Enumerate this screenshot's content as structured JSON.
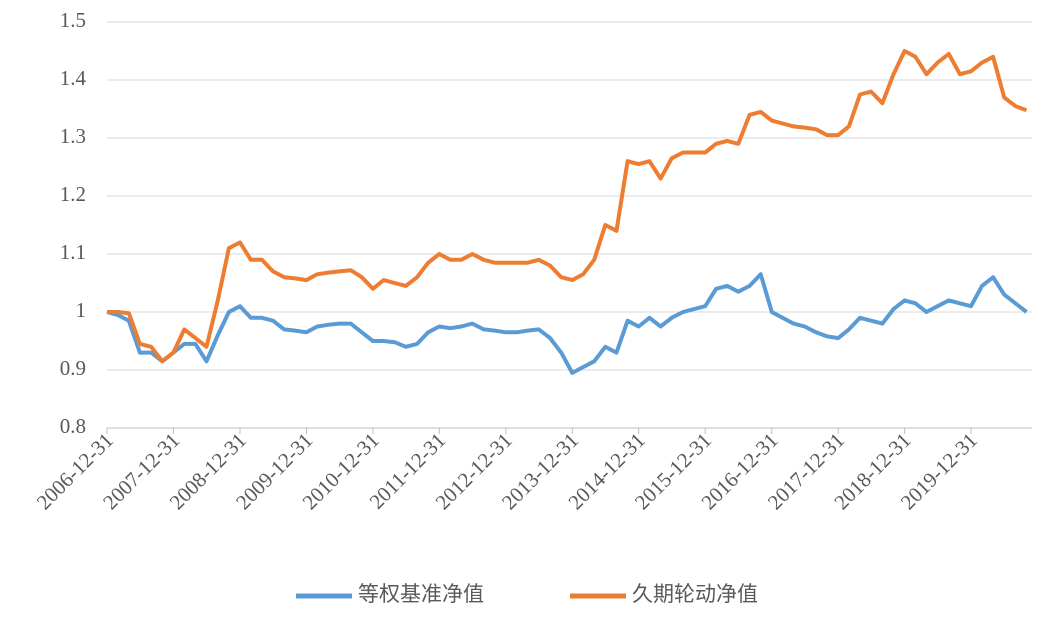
{
  "chart_data": {
    "type": "line",
    "x": [
      "2006-12-31",
      "2007-02-28",
      "2007-04-30",
      "2007-06-30",
      "2007-08-31",
      "2007-10-31",
      "2007-12-31",
      "2008-02-29",
      "2008-04-30",
      "2008-06-30",
      "2008-08-31",
      "2008-10-31",
      "2008-12-31",
      "2009-02-28",
      "2009-04-30",
      "2009-06-30",
      "2009-08-31",
      "2009-10-31",
      "2009-12-31",
      "2010-02-28",
      "2010-04-30",
      "2010-06-30",
      "2010-08-31",
      "2010-10-31",
      "2010-12-31",
      "2011-02-28",
      "2011-04-30",
      "2011-06-30",
      "2011-08-31",
      "2011-10-31",
      "2011-12-31",
      "2012-02-29",
      "2012-04-30",
      "2012-06-30",
      "2012-08-31",
      "2012-10-31",
      "2012-12-31",
      "2013-02-28",
      "2013-04-30",
      "2013-06-30",
      "2013-08-31",
      "2013-10-31",
      "2013-12-31",
      "2014-02-28",
      "2014-04-30",
      "2014-06-30",
      "2014-08-31",
      "2014-10-31",
      "2014-12-31",
      "2015-02-28",
      "2015-04-30",
      "2015-06-30",
      "2015-08-31",
      "2015-10-31",
      "2015-12-31",
      "2016-02-29",
      "2016-04-30",
      "2016-06-30",
      "2016-08-31",
      "2016-10-31",
      "2016-12-31",
      "2017-02-28",
      "2017-04-30",
      "2017-06-30",
      "2017-08-31",
      "2017-10-31",
      "2017-12-31",
      "2018-02-28",
      "2018-04-30",
      "2018-06-30",
      "2018-08-31",
      "2018-10-31",
      "2018-12-31",
      "2019-02-28",
      "2019-04-30",
      "2019-06-30",
      "2019-08-31",
      "2019-10-31",
      "2019-12-31",
      "2020-02-29",
      "2020-04-30",
      "2020-06-30",
      "2020-08-31",
      "2020-10-31"
    ],
    "series": [
      {
        "name": "等权基准净值",
        "color": "#5b9bd5",
        "values": [
          1.0,
          0.995,
          0.985,
          0.93,
          0.93,
          0.915,
          0.93,
          0.945,
          0.945,
          0.915,
          0.96,
          1.0,
          1.01,
          0.99,
          0.99,
          0.985,
          0.97,
          0.968,
          0.965,
          0.975,
          0.978,
          0.98,
          0.98,
          0.965,
          0.95,
          0.95,
          0.948,
          0.94,
          0.945,
          0.965,
          0.975,
          0.972,
          0.975,
          0.98,
          0.97,
          0.968,
          0.965,
          0.965,
          0.968,
          0.97,
          0.955,
          0.93,
          0.895,
          0.905,
          0.915,
          0.94,
          0.93,
          0.985,
          0.975,
          0.99,
          0.975,
          0.99,
          1.0,
          1.005,
          1.01,
          1.04,
          1.045,
          1.035,
          1.045,
          1.065,
          1.0,
          0.99,
          0.98,
          0.975,
          0.965,
          0.958,
          0.955,
          0.97,
          0.99,
          0.985,
          0.98,
          1.005,
          1.02,
          1.015,
          1.0,
          1.01,
          1.02,
          1.015,
          1.01,
          1.045,
          1.06,
          1.03,
          1.015,
          1.0
        ]
      },
      {
        "name": "久期轮动净值",
        "color": "#ed7d31",
        "values": [
          1.0,
          1.0,
          0.998,
          0.945,
          0.94,
          0.915,
          0.93,
          0.97,
          0.955,
          0.94,
          1.02,
          1.11,
          1.12,
          1.09,
          1.09,
          1.07,
          1.06,
          1.058,
          1.055,
          1.065,
          1.068,
          1.07,
          1.072,
          1.06,
          1.04,
          1.055,
          1.05,
          1.045,
          1.06,
          1.085,
          1.1,
          1.09,
          1.09,
          1.1,
          1.09,
          1.085,
          1.085,
          1.085,
          1.085,
          1.09,
          1.08,
          1.06,
          1.055,
          1.065,
          1.09,
          1.15,
          1.14,
          1.26,
          1.255,
          1.26,
          1.23,
          1.265,
          1.275,
          1.275,
          1.275,
          1.29,
          1.295,
          1.29,
          1.34,
          1.345,
          1.33,
          1.325,
          1.32,
          1.318,
          1.315,
          1.305,
          1.305,
          1.32,
          1.375,
          1.38,
          1.36,
          1.41,
          1.45,
          1.44,
          1.41,
          1.43,
          1.445,
          1.41,
          1.415,
          1.43,
          1.44,
          1.37,
          1.355,
          1.348
        ]
      }
    ],
    "xlim": [
      "2006-12-31",
      "2020-11-30"
    ],
    "xticks": [
      "2006-12-31",
      "2007-12-31",
      "2008-12-31",
      "2009-12-31",
      "2010-12-31",
      "2011-12-31",
      "2012-12-31",
      "2013-12-31",
      "2014-12-31",
      "2015-12-31",
      "2016-12-31",
      "2017-12-31",
      "2018-12-31",
      "2019-12-31"
    ],
    "ylim": [
      0.8,
      1.5
    ],
    "yticks": [
      0.8,
      0.9,
      1,
      1.1,
      1.2,
      1.3,
      1.4,
      1.5
    ],
    "grid": true,
    "legend": "bottom"
  }
}
